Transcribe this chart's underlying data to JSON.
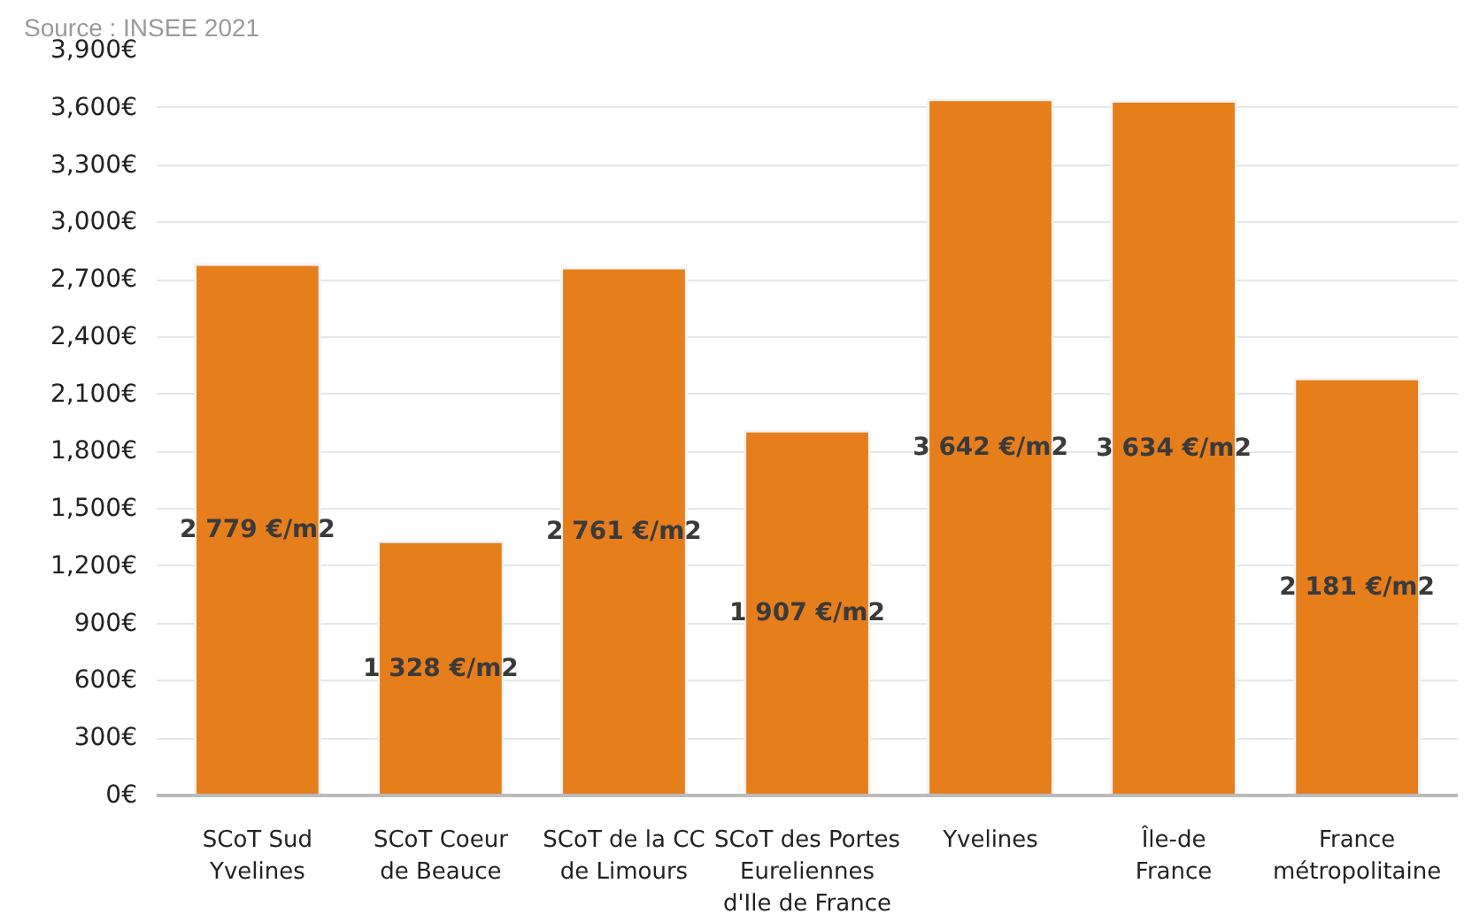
{
  "chart_data": {
    "type": "bar",
    "annotations": [
      "Source : INSEE 2021"
    ],
    "categories": [
      "SCoT Sud\nYvelines",
      "SCoT Coeur\nde Beauce",
      "SCoT de la CC\nde Limours",
      "SCoT des Portes\nEureliennes\nd'Ile de France",
      "Yvelines",
      "Île-de\nFrance",
      "France\nmétropolitaine"
    ],
    "values": [
      2779,
      1328,
      2761,
      1907,
      3642,
      3634,
      2181
    ],
    "value_labels": [
      "2 779 €/m2",
      "1 328 €/m2",
      "2 761 €/m2",
      "1 907 €/m2",
      "3 642 €/m2",
      "3 634 €/m2",
      "2 181 €/m2"
    ],
    "color": "#e67e1c",
    "ylim": [
      0,
      3900
    ],
    "yticks": [
      {
        "value": 0,
        "label": "0€"
      },
      {
        "value": 300,
        "label": "300€"
      },
      {
        "value": 600,
        "label": "600€"
      },
      {
        "value": 900,
        "label": "900€"
      },
      {
        "value": 1200,
        "label": "1,200€"
      },
      {
        "value": 1500,
        "label": "1,500€"
      },
      {
        "value": 1800,
        "label": "1,800€"
      },
      {
        "value": 2100,
        "label": "2,100€"
      },
      {
        "value": 2400,
        "label": "2,400€"
      },
      {
        "value": 2700,
        "label": "2,700€"
      },
      {
        "value": 3000,
        "label": "3,000€"
      },
      {
        "value": 3300,
        "label": "3,300€"
      },
      {
        "value": 3600,
        "label": "3,600€"
      },
      {
        "value": 3900,
        "label": "3,900€"
      }
    ],
    "grid": "y"
  }
}
